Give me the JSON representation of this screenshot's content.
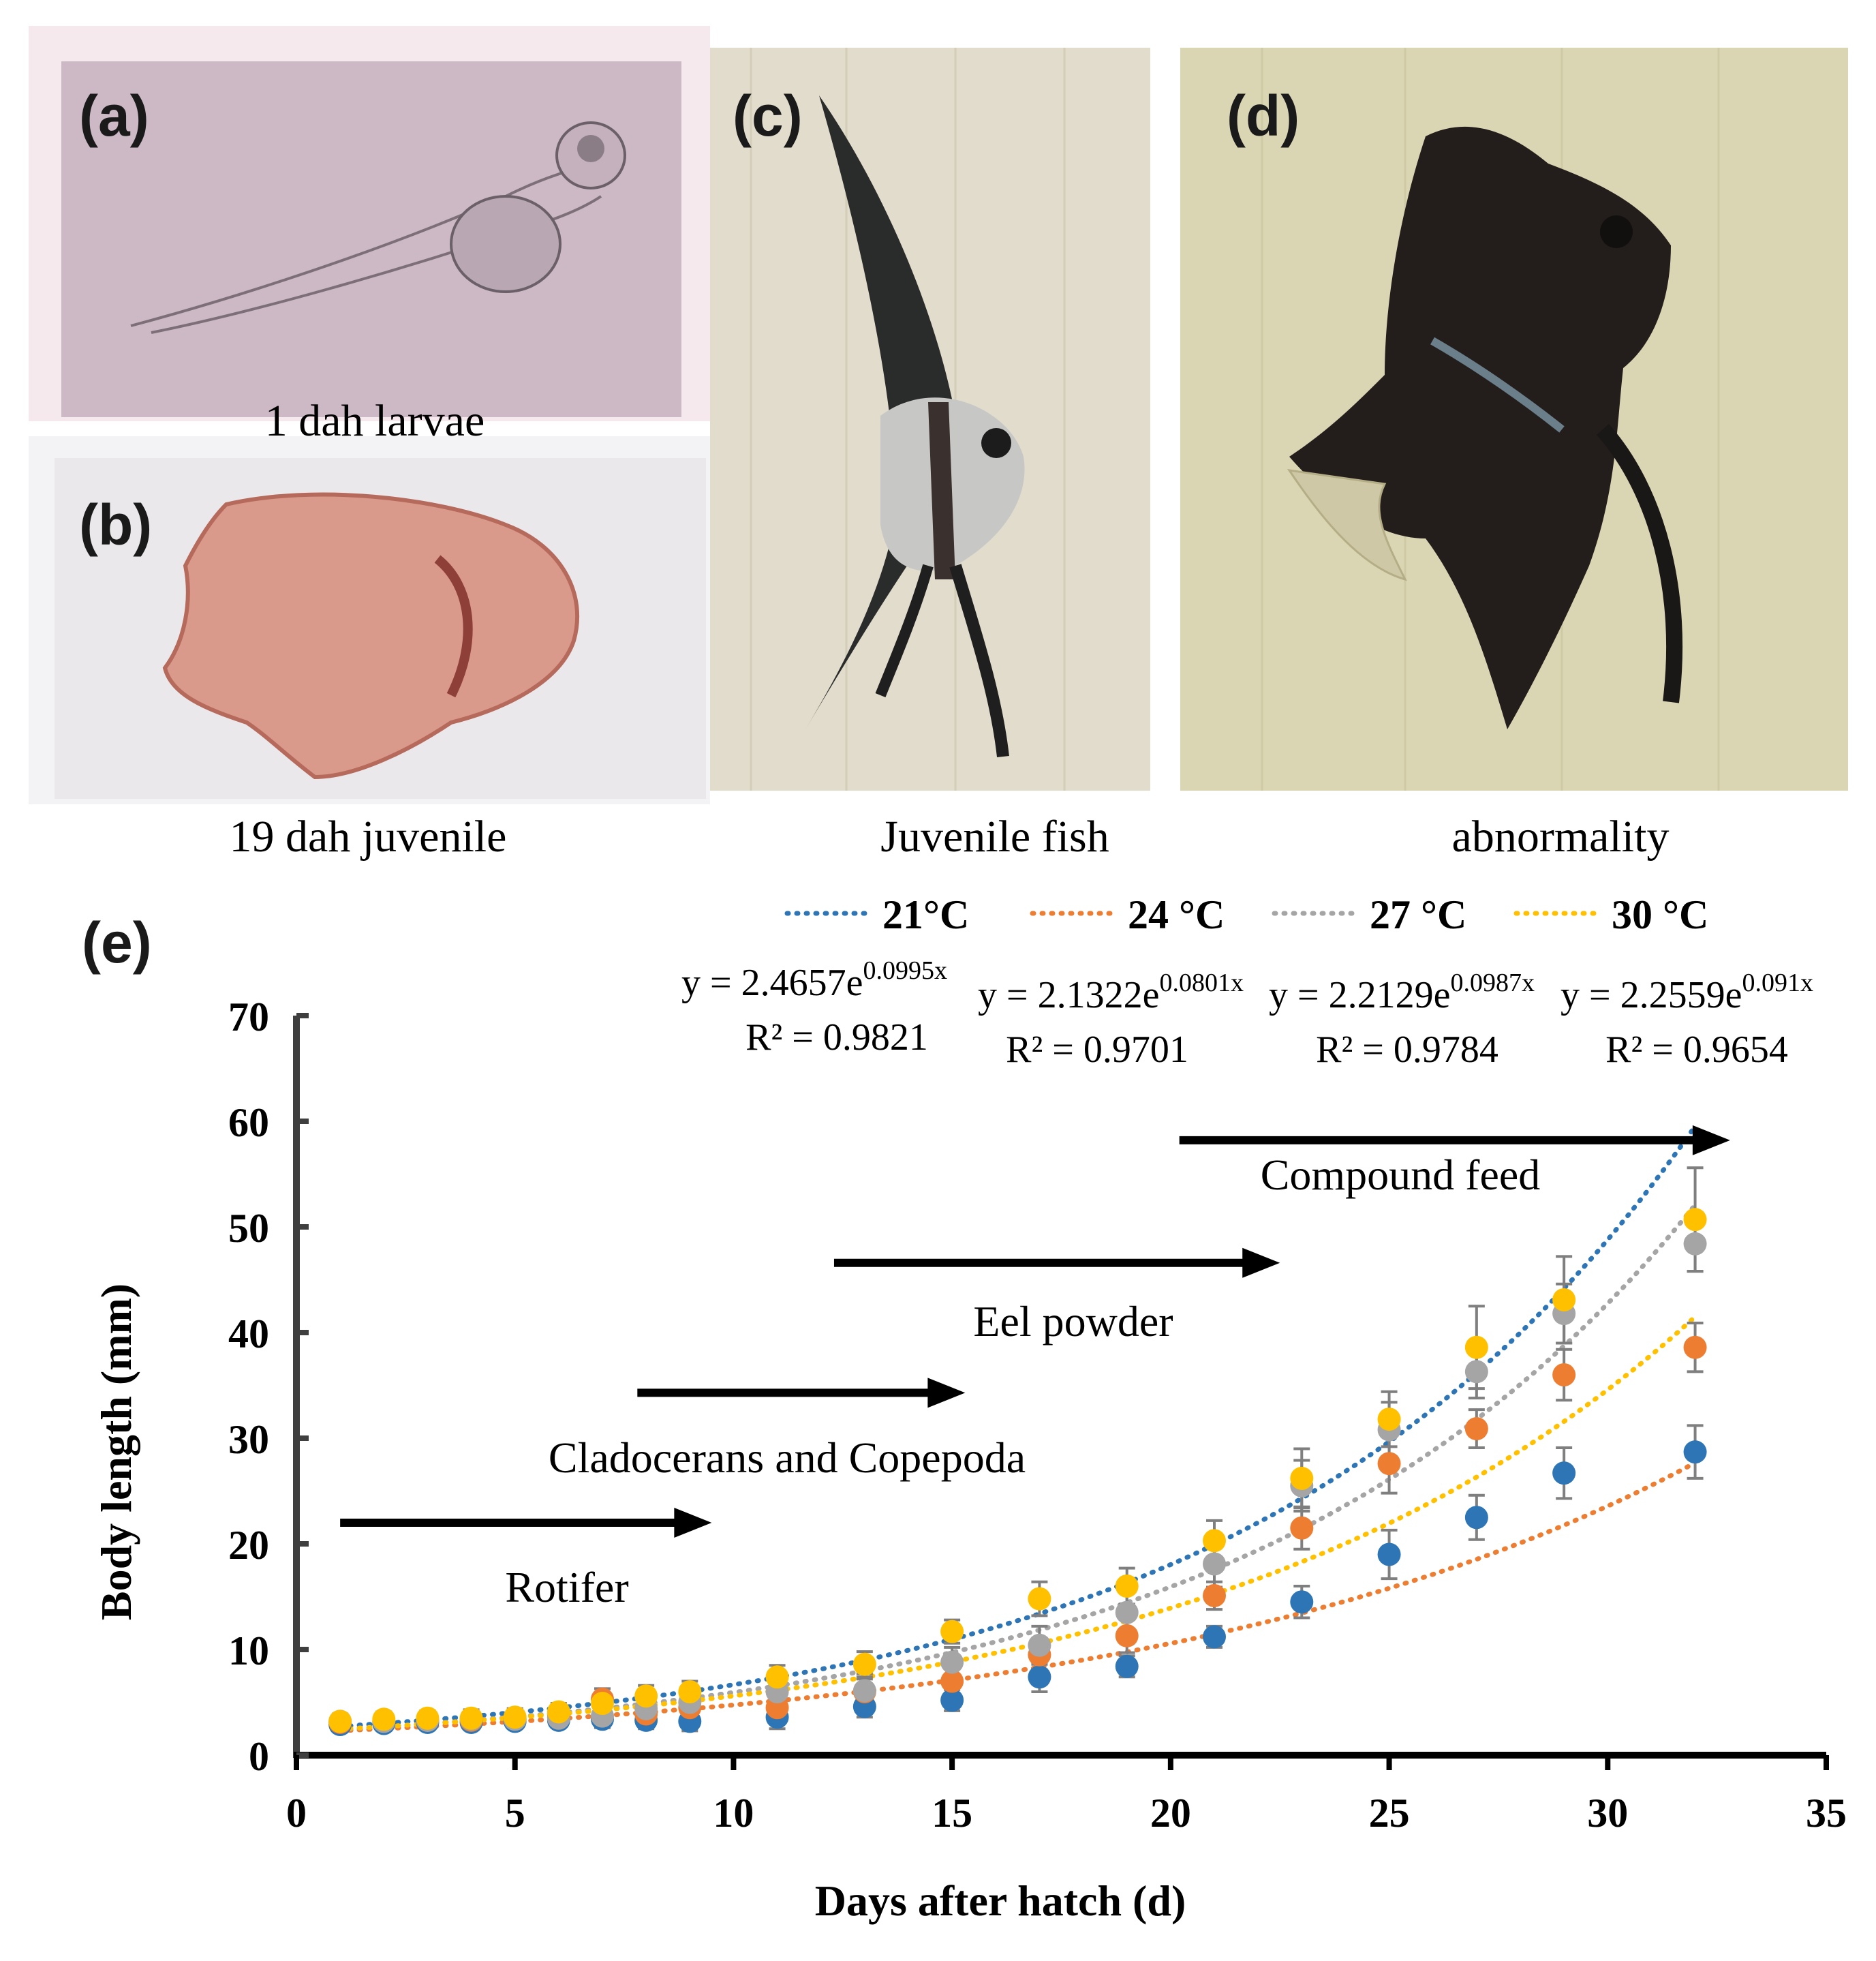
{
  "panels": {
    "a": {
      "letter": "(a)",
      "caption": "1 dah larvae"
    },
    "b": {
      "letter": "(b)",
      "caption": "19 dah juvenile"
    },
    "c": {
      "letter": "(c)",
      "caption": "Juvenile fish"
    },
    "d": {
      "letter": "(d)",
      "caption": "abnormality"
    },
    "e": {
      "letter": "(e)"
    }
  },
  "chart_data": {
    "type": "scatter",
    "title": "",
    "xlabel": "Days after hatch (d)",
    "ylabel": "Body length (mm)",
    "xlim": [
      0,
      35
    ],
    "ylim": [
      0,
      70
    ],
    "xticks": [
      0,
      5,
      10,
      15,
      20,
      25,
      30,
      35
    ],
    "yticks": [
      0,
      10,
      20,
      30,
      40,
      50,
      60,
      70
    ],
    "x": [
      1,
      2,
      3,
      4,
      5,
      6,
      7,
      8,
      9,
      11,
      13,
      15,
      17,
      19,
      21,
      23,
      25,
      27,
      29,
      32
    ],
    "series": [
      {
        "name": "21°C",
        "color": "#2E75B6",
        "values": [
          2.9,
          3.0,
          3.1,
          3.1,
          3.2,
          3.3,
          3.4,
          3.3,
          3.2,
          3.6,
          4.6,
          5.2,
          7.4,
          8.4,
          11.2,
          14.5,
          19.0,
          22.5,
          26.7,
          28.7
        ],
        "errors": [
          0.5,
          0.5,
          0.5,
          0.5,
          0.6,
          0.6,
          0.8,
          0.8,
          0.9,
          1.1,
          1.0,
          1.0,
          1.4,
          1.0,
          1.0,
          1.5,
          2.3,
          2.1,
          2.4,
          2.5
        ],
        "fit": {
          "a": 2.4657,
          "b": 0.0995
        }
      },
      {
        "name": "24 °C",
        "color": "#ED7D31",
        "values": [
          3.1,
          3.2,
          3.3,
          3.3,
          3.4,
          3.6,
          5.3,
          3.9,
          4.5,
          4.5,
          6.0,
          7.0,
          9.5,
          11.3,
          15.1,
          21.5,
          27.6,
          30.9,
          36.0,
          38.6
        ],
        "errors": [
          0.6,
          0.6,
          0.6,
          0.6,
          0.7,
          0.7,
          1.0,
          1.1,
          1.2,
          1.0,
          1.2,
          1.4,
          1.4,
          1.6,
          1.3,
          2.0,
          2.8,
          1.8,
          2.4,
          2.3
        ],
        "fit": {
          "a": 2.1322,
          "b": 0.0801
        }
      },
      {
        "name": "27 °C",
        "color": "#A5A5A5",
        "values": [
          3.2,
          3.2,
          3.3,
          3.4,
          3.4,
          3.5,
          3.7,
          4.4,
          5.0,
          6.0,
          6.1,
          8.8,
          10.4,
          13.5,
          18.1,
          25.5,
          30.8,
          36.3,
          41.8,
          48.4
        ],
        "errors": [
          0.6,
          0.6,
          0.6,
          0.7,
          0.7,
          0.7,
          0.8,
          1.0,
          1.1,
          1.3,
          1.6,
          1.4,
          1.8,
          1.9,
          2.2,
          2.4,
          2.6,
          2.5,
          2.8,
          2.6
        ],
        "fit": {
          "a": 2.2129,
          "b": 0.0987
        }
      },
      {
        "name": "30 °C",
        "color": "#FFC000",
        "values": [
          3.2,
          3.4,
          3.5,
          3.5,
          3.6,
          4.1,
          4.9,
          5.6,
          6.0,
          7.4,
          8.6,
          11.7,
          14.8,
          16.0,
          20.3,
          26.2,
          31.8,
          38.6,
          43.1,
          50.7
        ],
        "errors": [
          0.7,
          0.7,
          0.7,
          0.8,
          0.8,
          0.8,
          0.9,
          1.0,
          1.0,
          1.1,
          1.2,
          1.1,
          1.6,
          1.7,
          1.9,
          2.8,
          2.6,
          3.9,
          4.1,
          4.9
        ],
        "fit": {
          "a": 2.2559,
          "b": 0.091
        }
      }
    ],
    "equations": [
      {
        "pre": "y = 2.4657e",
        "exp": "0.0995x",
        "r2": "R² = 0.9821"
      },
      {
        "pre": "y = 2.1322e",
        "exp": "0.0801x",
        "r2": "R² = 0.9701"
      },
      {
        "pre": "y = 2.2129e",
        "exp": "0.0987x",
        "r2": "R² = 0.9784"
      },
      {
        "pre": "y = 2.2559e",
        "exp": "0.091x",
        "r2": "R² = 0.9654"
      }
    ],
    "annotations": [
      {
        "label": "Rotifer",
        "arrow_from_x": 1,
        "arrow_to_x": 9.5,
        "arrow_y": 22
      },
      {
        "label": "Cladocerans and Copepoda",
        "arrow_from_x": 7.8,
        "arrow_to_x": 15.3,
        "arrow_y": 34.3
      },
      {
        "label": "Eel powder",
        "arrow_from_x": 12.3,
        "arrow_to_x": 22.5,
        "arrow_y": 46.6
      },
      {
        "label": "Compound feed",
        "arrow_from_x": 20.2,
        "arrow_to_x": 32.8,
        "arrow_y": 58.2
      }
    ],
    "legend_position": "top"
  }
}
